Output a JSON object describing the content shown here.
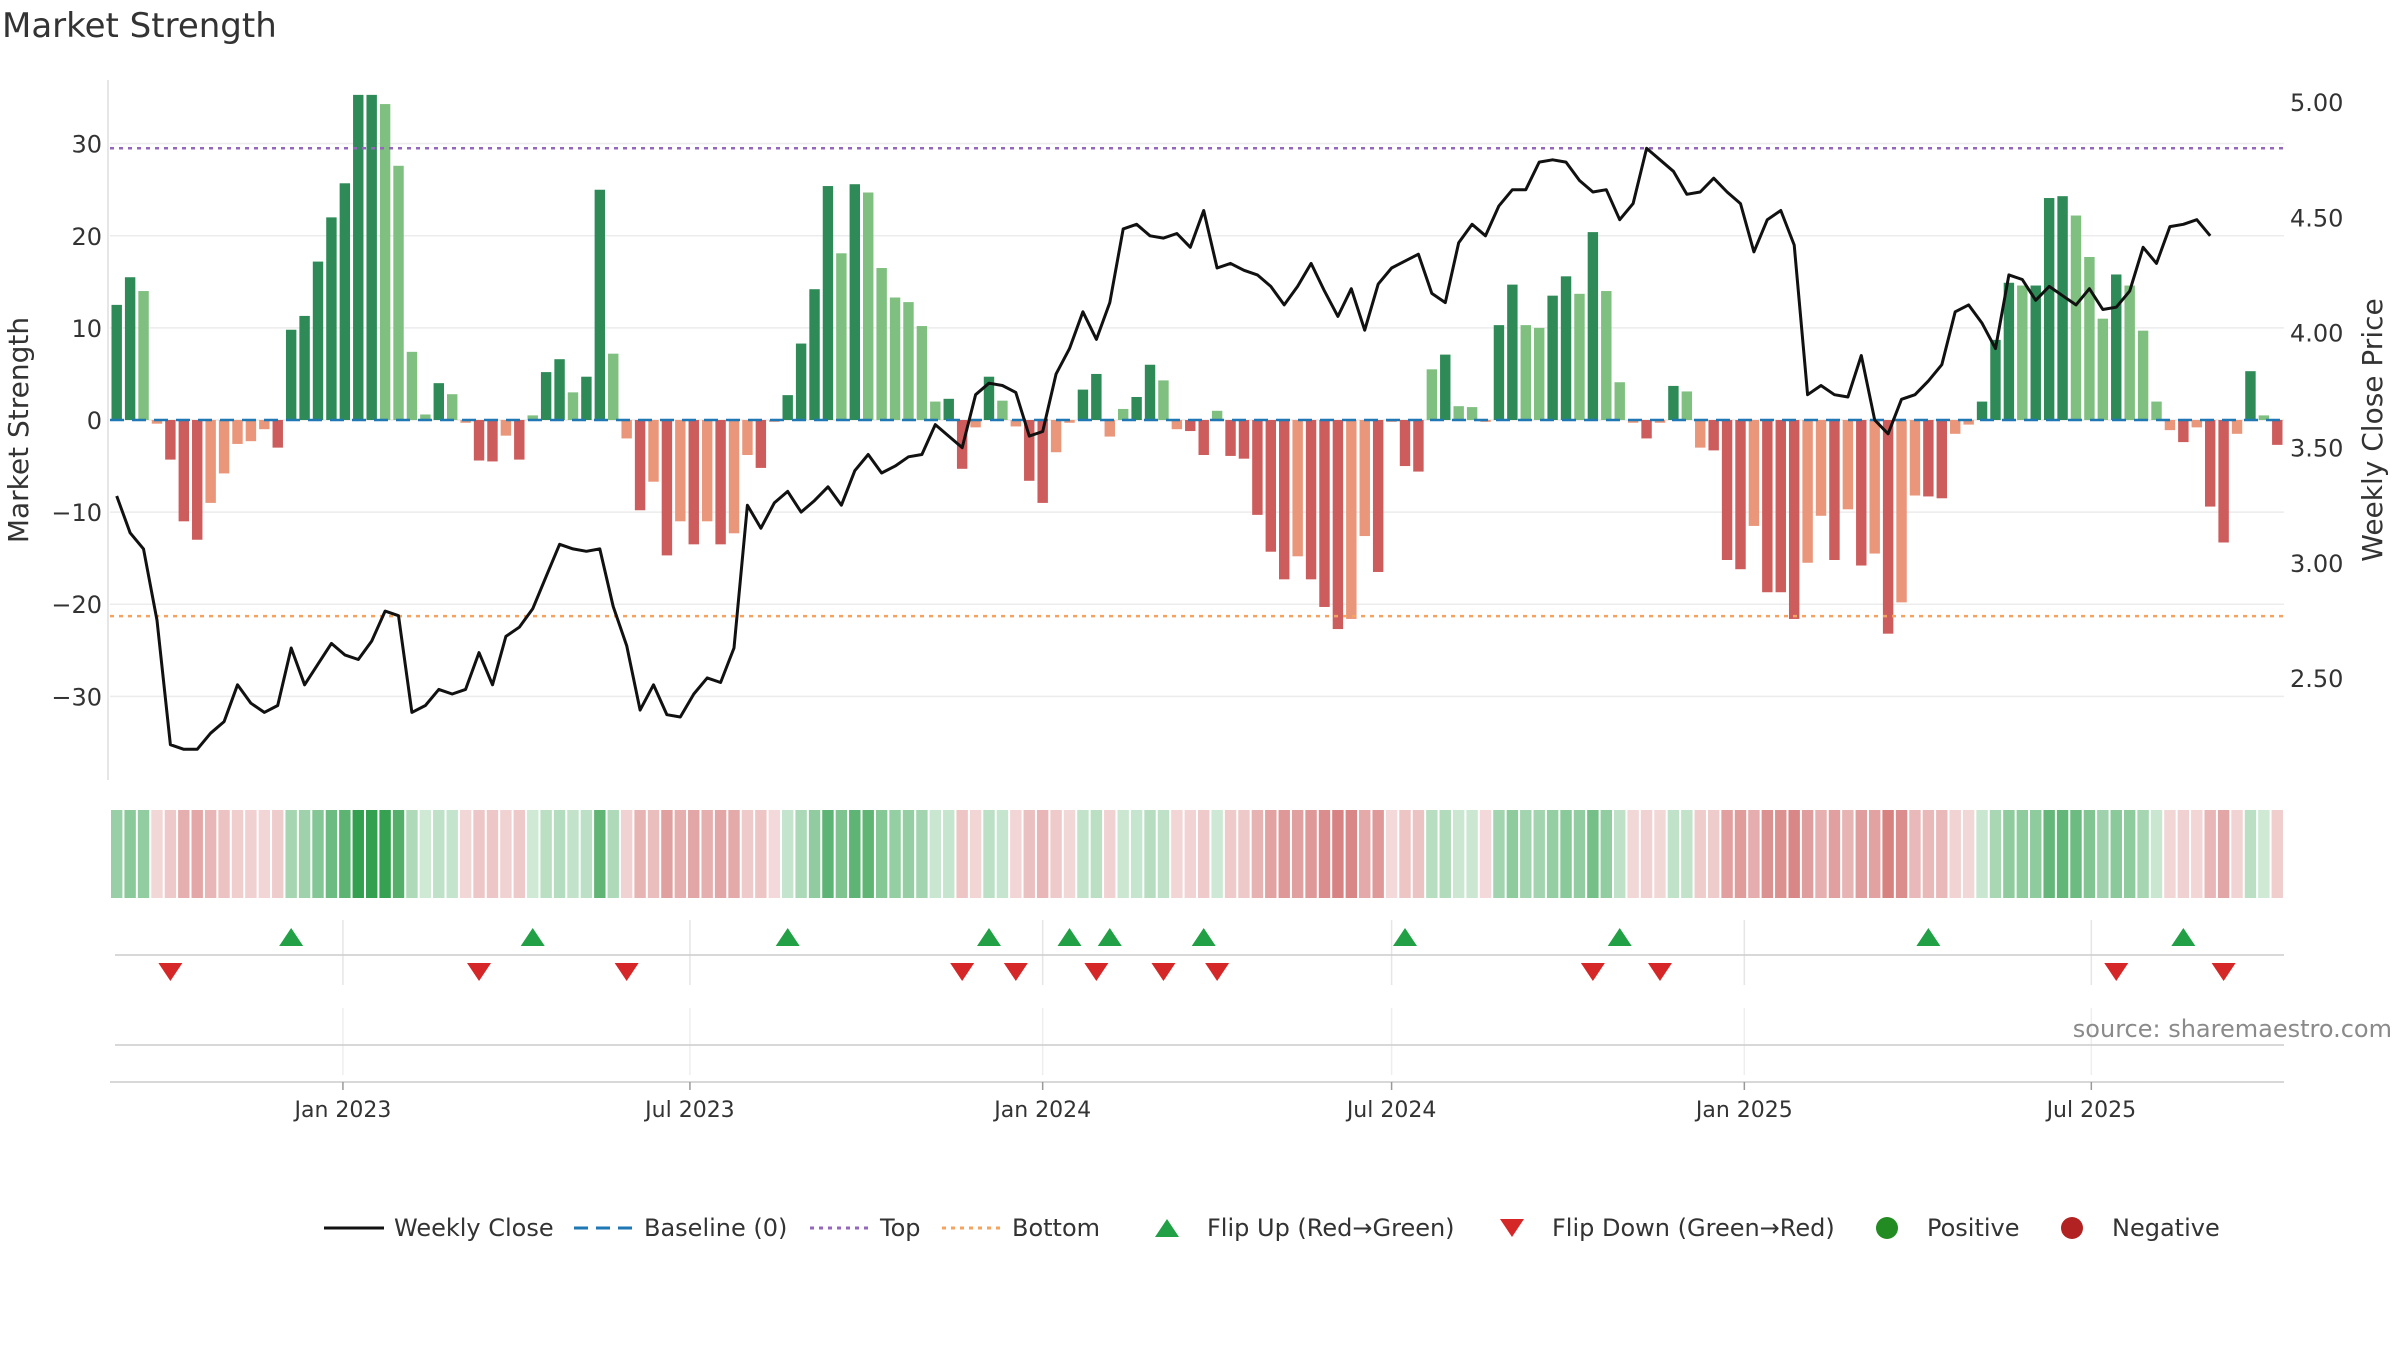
{
  "title": "Market Strength",
  "source": "source: sharemaestro.com",
  "colors": {
    "strong_green": "#2e8b57",
    "light_green": "#7fbf7f",
    "strong_red": "#cd5c5c",
    "light_red": "#e9967a",
    "close_line": "#111111",
    "baseline": "#1f77b4",
    "top": "#9467bd",
    "bottom": "#f4a460",
    "flip_up": "#22a046",
    "flip_down": "#d62728"
  },
  "chart_data": {
    "type": "bar",
    "x_start": "2022-09-05",
    "x_step_days": 7,
    "xticks": [
      "Jan 2023",
      "Jul 2023",
      "Jan 2024",
      "Jul 2024",
      "Jan 2025",
      "Jul 2025"
    ],
    "xtick_dates": [
      "2023-01-01",
      "2023-07-01",
      "2024-01-01",
      "2024-07-01",
      "2025-01-01",
      "2025-07-01"
    ],
    "ylabel_left": "Market Strength",
    "ylabel_right": "Weekly Close Price",
    "ylim_left": [
      -38,
      38
    ],
    "yticks_left": [
      -30,
      -20,
      -10,
      0,
      10,
      20,
      30
    ],
    "ylim_right": [
      2.1,
      5.14
    ],
    "yticks_right": [
      "2.50",
      "3.00",
      "3.50",
      "4.00",
      "4.50",
      "5.00"
    ],
    "top_level": 29.5,
    "bottom_level": -21.3,
    "strength": [
      12.5,
      15.5,
      14,
      -0.4,
      -4.3,
      -11,
      -13,
      -9,
      -5.8,
      -2.6,
      -2.3,
      -1,
      -3,
      9.8,
      11.3,
      17.2,
      22,
      25.7,
      35.3,
      35.3,
      34.3,
      27.6,
      7.4,
      0.6,
      4,
      2.8,
      -0.3,
      -4.4,
      -4.5,
      -1.7,
      -4.3,
      0.5,
      5.2,
      6.6,
      3,
      4.7,
      25,
      7.2,
      -2,
      -9.8,
      -6.7,
      -14.7,
      -11,
      -13.5,
      -11,
      -13.5,
      -12.3,
      -3.8,
      -5.2,
      -0.2,
      2.7,
      8.3,
      14.2,
      25.4,
      18.1,
      25.6,
      24.7,
      16.5,
      13.3,
      12.8,
      10.2,
      2,
      2.3,
      -5.3,
      -0.8,
      4.7,
      2.1,
      -0.7,
      -6.6,
      -9,
      -3.5,
      -0.3,
      3.3,
      5,
      -1.8,
      1.2,
      2.5,
      6,
      4.3,
      -1,
      -1.2,
      -3.8,
      1,
      -3.9,
      -4.2,
      -10.3,
      -14.3,
      -17.3,
      -14.8,
      -17.3,
      -20.3,
      -22.7,
      -21.6,
      -12.6,
      -16.5,
      -0.2,
      -5,
      -5.6,
      5.5,
      7.1,
      1.5,
      1.4,
      -0.2,
      10.3,
      14.7,
      10.3,
      10,
      13.5,
      15.6,
      13.7,
      20.4,
      14,
      4.1,
      -0.3,
      -2,
      -0.3,
      3.7,
      3.1,
      -3,
      -3.3,
      -15.2,
      -16.2,
      -11.5,
      -18.7,
      -18.7,
      -21.6,
      -15.5,
      -10.4,
      -15.2,
      -9.7,
      -15.8,
      -14.5,
      -23.2,
      -19.8,
      -8.2,
      -8.3,
      -8.5,
      -1.5,
      -0.5,
      2,
      8.7,
      14.9,
      14.6,
      14.6,
      24.1,
      24.3,
      22.2,
      17.7,
      11,
      15.8,
      14.6,
      9.7,
      2,
      -1.1,
      -2.4,
      -0.8,
      -9.4,
      -13.3,
      -1.5,
      5.3,
      0.5,
      -2.7
    ],
    "weekly_close": [
      3.29,
      3.13,
      3.06,
      2.75,
      2.21,
      2.19,
      2.19,
      2.26,
      2.31,
      2.47,
      2.39,
      2.35,
      2.38,
      2.63,
      2.47,
      2.56,
      2.65,
      2.6,
      2.58,
      2.66,
      2.79,
      2.77,
      2.35,
      2.38,
      2.45,
      2.43,
      2.45,
      2.61,
      2.47,
      2.68,
      2.72,
      2.8,
      2.94,
      3.08,
      3.06,
      3.05,
      3.06,
      2.81,
      2.64,
      2.36,
      2.47,
      2.34,
      2.33,
      2.43,
      2.5,
      2.48,
      2.63,
      3.25,
      3.15,
      3.26,
      3.31,
      3.22,
      3.27,
      3.33,
      3.25,
      3.4,
      3.47,
      3.39,
      3.42,
      3.46,
      3.47,
      3.6,
      3.55,
      3.5,
      3.73,
      3.78,
      3.77,
      3.74,
      3.55,
      3.57,
      3.82,
      3.93,
      4.09,
      3.97,
      4.13,
      4.45,
      4.47,
      4.42,
      4.41,
      4.43,
      4.37,
      4.53,
      4.28,
      4.3,
      4.27,
      4.25,
      4.2,
      4.12,
      4.2,
      4.3,
      4.18,
      4.07,
      4.19,
      4.01,
      4.21,
      4.28,
      4.31,
      4.34,
      4.17,
      4.13,
      4.39,
      4.47,
      4.42,
      4.55,
      4.62,
      4.62,
      4.74,
      4.75,
      4.74,
      4.66,
      4.61,
      4.62,
      4.49,
      4.56,
      4.8,
      4.75,
      4.7,
      4.6,
      4.61,
      4.67,
      4.61,
      4.56,
      4.35,
      4.49,
      4.53,
      4.38,
      3.73,
      3.77,
      3.73,
      3.72,
      3.9,
      3.62,
      3.56,
      3.71,
      3.73,
      3.79,
      3.86,
      4.09,
      4.12,
      4.04,
      3.93,
      4.25,
      4.23,
      4.14,
      4.2,
      4.16,
      4.12,
      4.19,
      4.1,
      4.11,
      4.18,
      4.37,
      4.3,
      4.46,
      4.47,
      4.49,
      4.42
    ]
  },
  "flip_up_weeks": [
    13,
    31,
    50,
    65,
    71,
    74,
    81,
    96,
    112,
    135,
    154
  ],
  "flip_down_weeks": [
    4,
    27,
    38,
    63,
    67,
    73,
    78,
    82,
    110,
    115,
    149,
    157
  ],
  "legend": [
    {
      "label": "Weekly Close",
      "kind": "line"
    },
    {
      "label": "Baseline (0)",
      "kind": "dash"
    },
    {
      "label": "Top",
      "kind": "dot-purple"
    },
    {
      "label": "Bottom",
      "kind": "dot-orange"
    },
    {
      "label": "Flip Up (Red→Green)",
      "kind": "tri-up"
    },
    {
      "label": "Flip Down (Green→Red)",
      "kind": "tri-down"
    },
    {
      "label": "Positive",
      "kind": "dot-green"
    },
    {
      "label": "Negative",
      "kind": "dot-red"
    }
  ]
}
